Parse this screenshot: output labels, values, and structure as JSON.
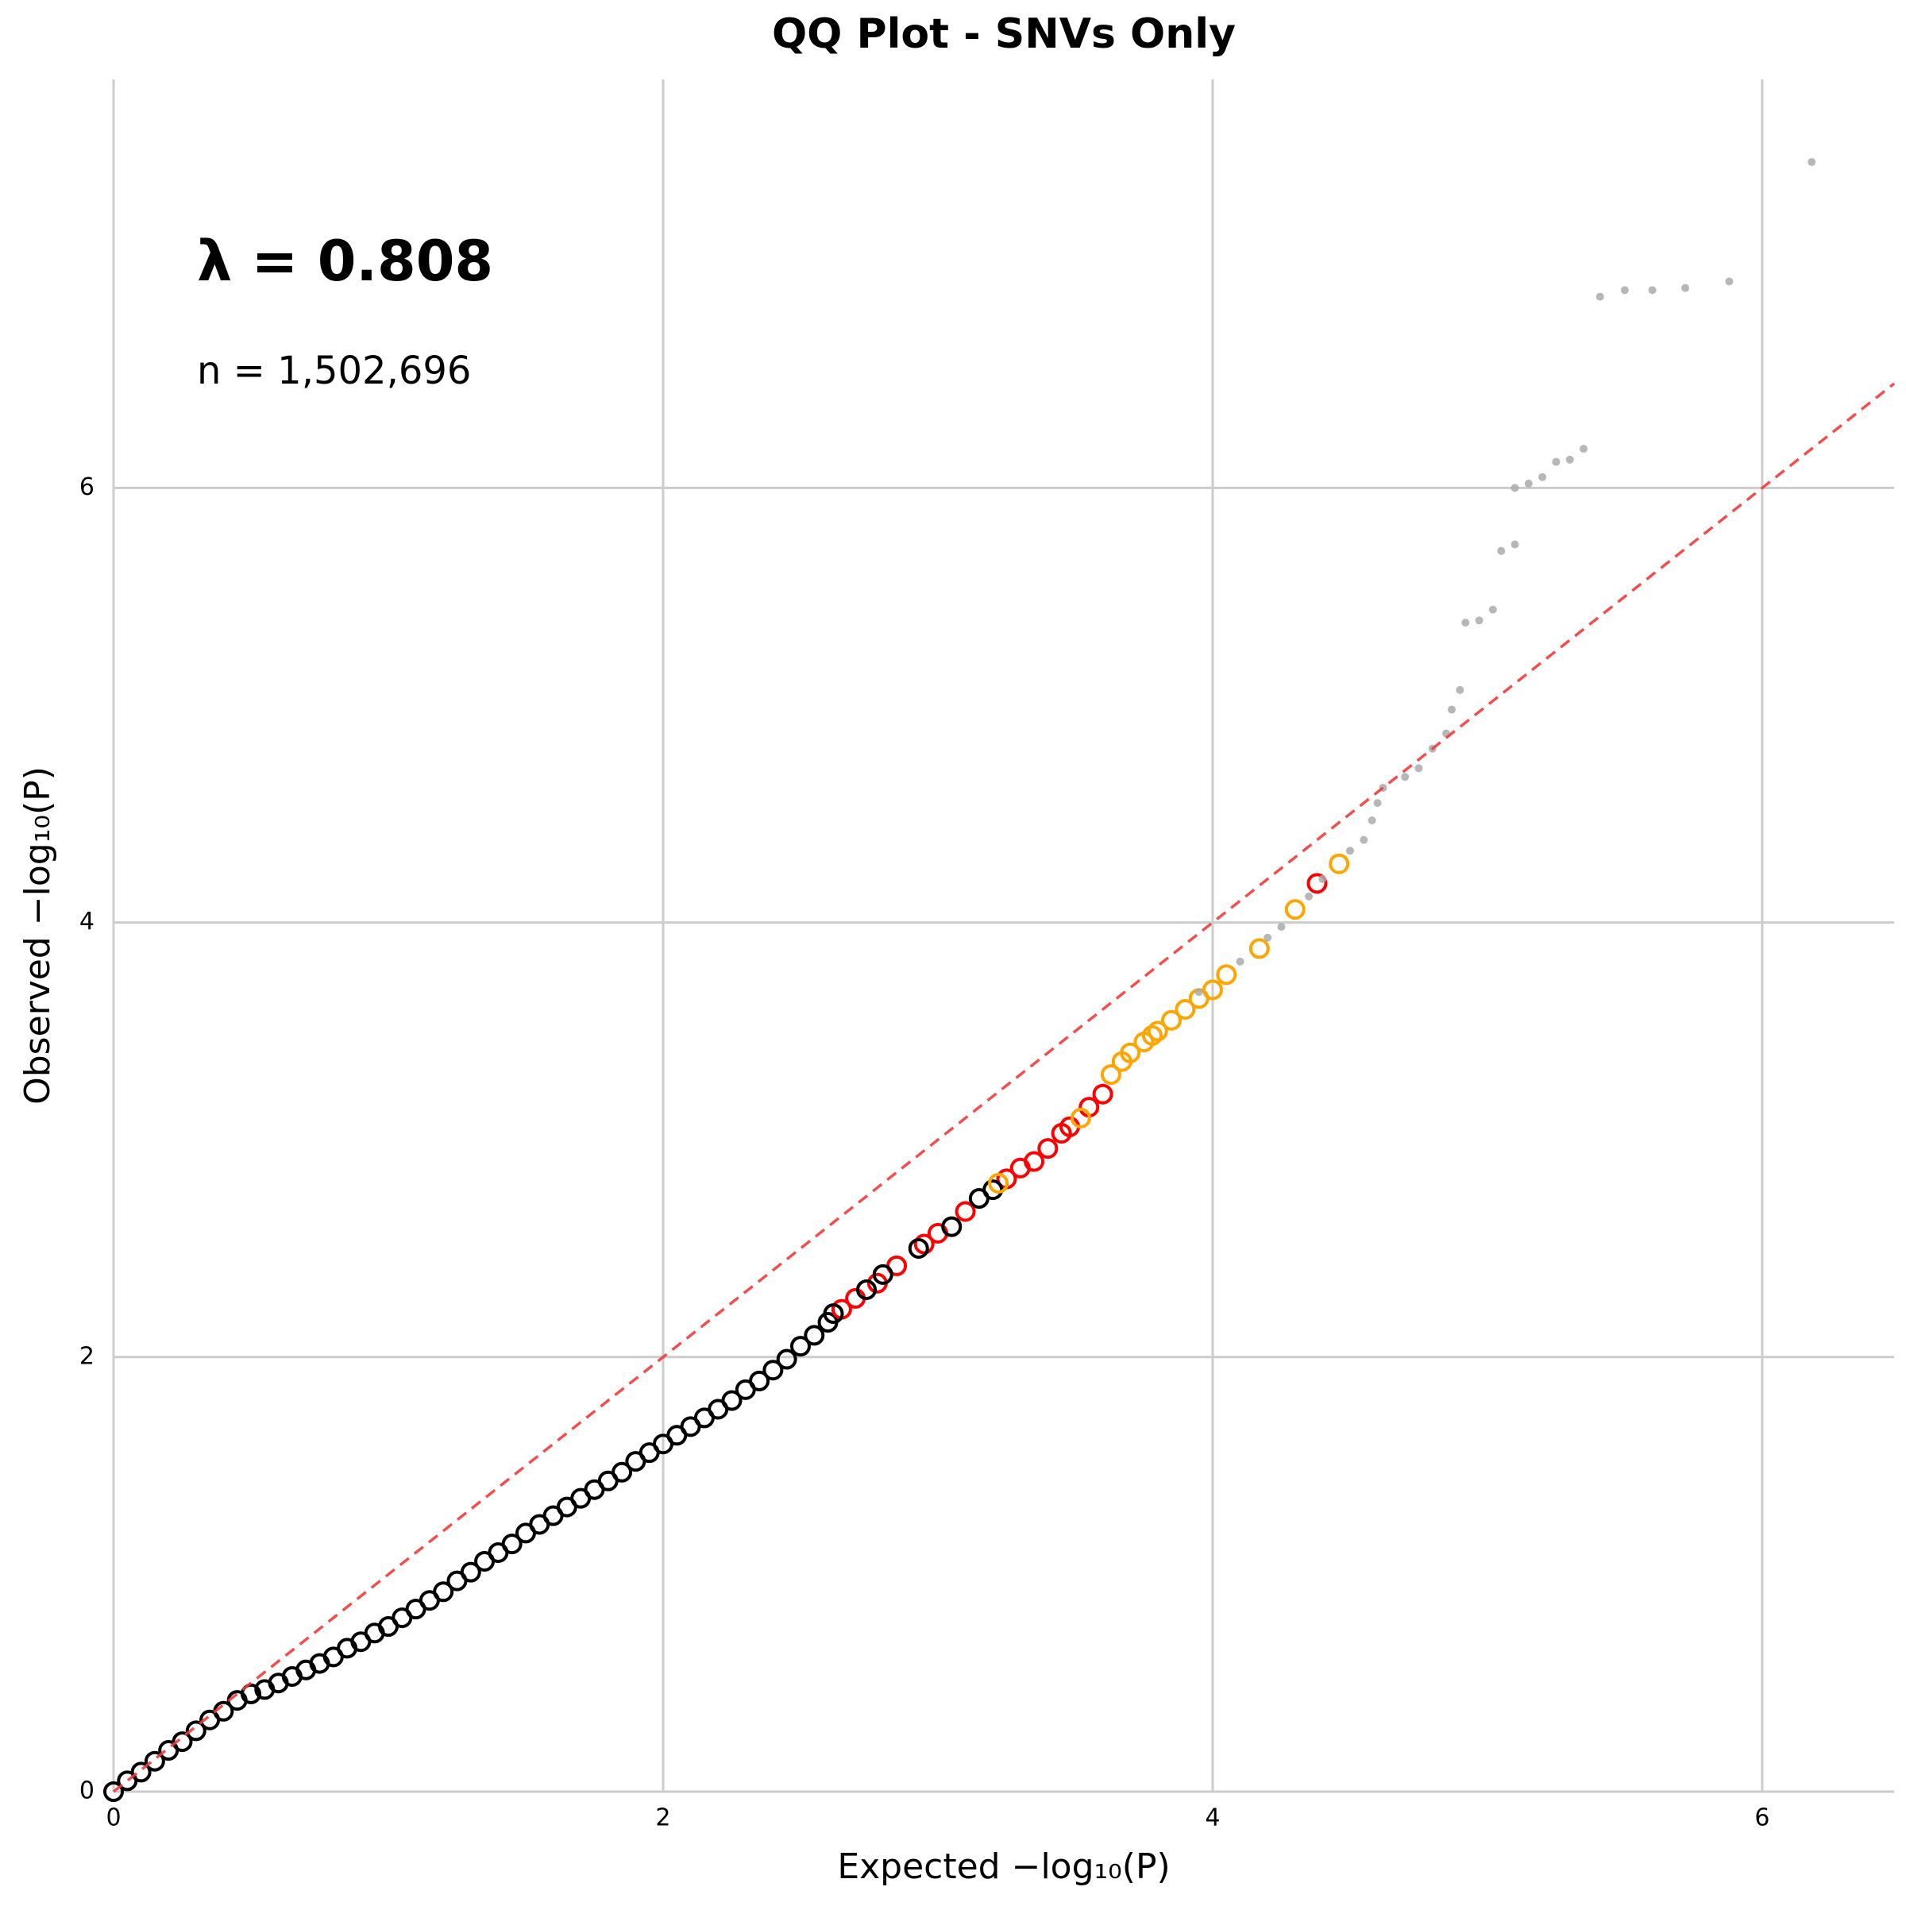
{
  "chart_data": {
    "type": "scatter",
    "title": "QQ Plot - SNVs Only",
    "x_label": "Expected −log₁₀(P)",
    "y_label": "Observed −log₁₀(P)",
    "annotations": [
      "λ = 0.808",
      "n = 1,502,696"
    ],
    "xlim": [
      0,
      6.48
    ],
    "ylim": [
      0,
      7.88
    ],
    "xticks": [
      0,
      2,
      4,
      6
    ],
    "yticks": [
      0,
      2,
      4,
      6
    ],
    "grid": true,
    "reference_line_color": "#f03c3c",
    "series": [
      {
        "color": "#000000",
        "marker": "open",
        "x": [
          0,
          0.05,
          0.1,
          0.15,
          0.2,
          0.25,
          0.3,
          0.35,
          0.4,
          0.45,
          0.5,
          0.55,
          0.6,
          0.65,
          0.7,
          0.75,
          0.8,
          0.85,
          0.9,
          0.95,
          1.0,
          1.05,
          1.1,
          1.15,
          1.2,
          1.25,
          1.3,
          1.35,
          1.4,
          1.45,
          1.5,
          1.55,
          1.6,
          1.65,
          1.7,
          1.75,
          1.8,
          1.85,
          1.9,
          1.95,
          2.0,
          2.05,
          2.1,
          2.15,
          2.2,
          2.25,
          2.3,
          2.35,
          2.4,
          2.45,
          2.5,
          2.55,
          2.6
        ],
        "values": [
          0,
          0.05,
          0.09,
          0.14,
          0.19,
          0.23,
          0.28,
          0.33,
          0.37,
          0.42,
          0.45,
          0.47,
          0.5,
          0.53,
          0.56,
          0.59,
          0.62,
          0.66,
          0.69,
          0.73,
          0.76,
          0.8,
          0.84,
          0.88,
          0.92,
          0.97,
          1.01,
          1.06,
          1.1,
          1.14,
          1.19,
          1.23,
          1.27,
          1.31,
          1.35,
          1.39,
          1.43,
          1.47,
          1.52,
          1.56,
          1.6,
          1.64,
          1.68,
          1.72,
          1.76,
          1.8,
          1.85,
          1.89,
          1.94,
          1.99,
          2.05,
          2.1,
          2.16
        ]
      },
      {
        "color": "#ff0000",
        "marker": "open",
        "x": [
          2.65,
          2.7,
          2.78,
          2.85,
          2.95,
          3.0,
          3.1,
          3.25,
          3.3,
          3.35,
          3.4,
          3.45,
          3.48,
          3.55,
          3.6,
          4.38
        ],
        "values": [
          2.22,
          2.27,
          2.34,
          2.42,
          2.52,
          2.57,
          2.67,
          2.82,
          2.87,
          2.9,
          2.96,
          3.03,
          3.06,
          3.15,
          3.21,
          4.18
        ]
      },
      {
        "color": "#000000",
        "marker": "open",
        "x": [
          2.62,
          2.74,
          2.8,
          2.93,
          3.05,
          3.15,
          3.2
        ],
        "values": [
          2.2,
          2.31,
          2.38,
          2.5,
          2.6,
          2.73,
          2.77
        ]
      },
      {
        "color": "#ffa500",
        "marker": "open",
        "x": [
          3.22,
          3.52,
          3.63,
          3.67,
          3.7,
          3.75,
          3.78,
          3.8,
          3.85,
          3.9,
          3.95,
          4.0,
          4.05,
          4.17,
          4.3,
          4.46
        ],
        "values": [
          2.8,
          3.1,
          3.3,
          3.36,
          3.4,
          3.45,
          3.48,
          3.5,
          3.55,
          3.6,
          3.65,
          3.69,
          3.76,
          3.88,
          4.06,
          4.27
        ]
      },
      {
        "color": "#aaaaaa",
        "marker": "dot",
        "x": [
          3.95,
          4.1,
          4.2,
          4.25,
          4.35,
          4.4,
          4.5,
          4.55,
          4.58,
          4.6,
          4.62,
          4.7,
          4.75,
          4.8,
          4.85,
          4.87,
          4.9,
          4.92,
          4.97,
          5.02,
          5.05,
          5.1,
          5.1,
          5.15,
          5.2,
          5.25,
          5.3,
          5.35,
          5.41,
          5.5,
          5.6,
          5.72,
          5.88,
          6.18
        ],
        "values": [
          3.68,
          3.82,
          3.93,
          3.98,
          4.12,
          4.2,
          4.33,
          4.38,
          4.47,
          4.55,
          4.62,
          4.67,
          4.71,
          4.8,
          4.87,
          4.98,
          5.07,
          5.38,
          5.39,
          5.44,
          5.71,
          5.74,
          6.0,
          6.02,
          6.05,
          6.12,
          6.13,
          6.18,
          6.88,
          6.91,
          6.91,
          6.92,
          6.95,
          7.5
        ]
      }
    ]
  }
}
